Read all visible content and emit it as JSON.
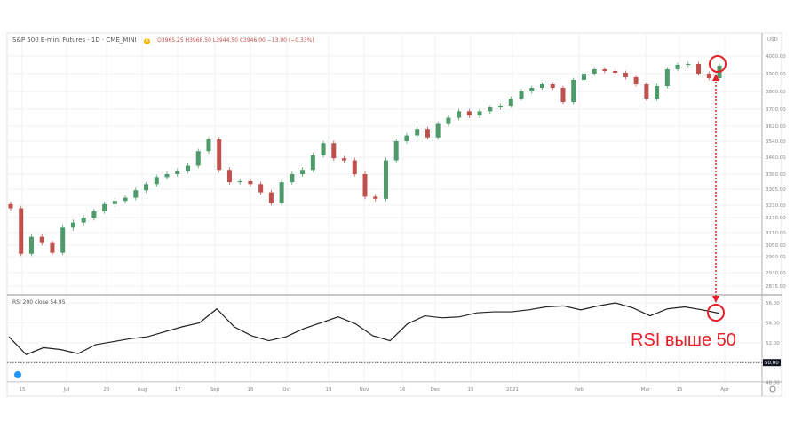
{
  "header": {
    "symbol": "S&P 500 E-mini Futures · 1D · CME_MINI",
    "badge": "D",
    "ohlc": "O3965.25 H3968.50 L3944.50 C3946.00 −13.00 (−0.33%)"
  },
  "rsi_header": "RSI 200 close  54.95",
  "annotation": "RSI выше 50",
  "currency": "USD",
  "colors": {
    "up": "#26a69a",
    "down": "#c0504d",
    "candle_up_body": "#4e9a6a",
    "annotation": "#e8202a",
    "rsi_line": "#222222"
  },
  "chart_data": [
    {
      "type": "candlestick",
      "title": "S&P 500 E-mini Futures · 1D · CME_MINI",
      "y_ticks": [
        "4000.00",
        "3900.00",
        "3800.00",
        "3700.00",
        "3620.00",
        "3540.00",
        "3460.00",
        "3380.00",
        "3305.00",
        "3230.00",
        "3170.00",
        "3110.00",
        "3050.00",
        "2990.00",
        "2930.00",
        "2875.00"
      ],
      "closes": [
        3215,
        3005,
        3090,
        3060,
        3010,
        3130,
        3150,
        3170,
        3200,
        3235,
        3250,
        3265,
        3300,
        3330,
        3365,
        3380,
        3395,
        3420,
        3490,
        3550,
        3400,
        3340,
        3345,
        3330,
        3290,
        3240,
        3340,
        3380,
        3400,
        3470,
        3530,
        3455,
        3445,
        3380,
        3270,
        3260,
        3445,
        3540,
        3570,
        3605,
        3560,
        3630,
        3660,
        3690,
        3670,
        3690,
        3710,
        3720,
        3760,
        3800,
        3820,
        3840,
        3820,
        3740,
        3865,
        3900,
        3925,
        3915,
        3905,
        3880,
        3840,
        3760,
        3830,
        3925,
        3950,
        3955,
        3900,
        3875,
        3946
      ],
      "ylim": [
        2860,
        4030
      ]
    },
    {
      "type": "line",
      "title": "RSI 200 close",
      "last_value": 54.95,
      "y_ticks": [
        "56.00",
        "54.00",
        "52.00",
        "50.00",
        "48.00"
      ],
      "reference_line": 50,
      "values": [
        52.6,
        50.8,
        51.5,
        51.3,
        50.9,
        51.8,
        52.1,
        52.4,
        52.6,
        53.1,
        53.6,
        54.0,
        55.4,
        53.6,
        52.7,
        52.2,
        52.6,
        53.4,
        54.0,
        54.6,
        53.9,
        52.7,
        52.2,
        53.9,
        54.7,
        54.5,
        54.6,
        55.0,
        55.1,
        55.1,
        55.3,
        55.6,
        55.7,
        55.3,
        55.7,
        56.0,
        55.5,
        54.7,
        55.4,
        55.6,
        55.3,
        54.95
      ],
      "ylim": [
        47.5,
        56.8
      ]
    }
  ],
  "x_ticks": [
    "15",
    "Jul",
    "20",
    "Aug",
    "17",
    "Sep",
    "16",
    "Oct",
    "19",
    "Nov",
    "16",
    "Dec",
    "15",
    "2021",
    "Feb",
    "Mar",
    "15",
    "Apr"
  ]
}
